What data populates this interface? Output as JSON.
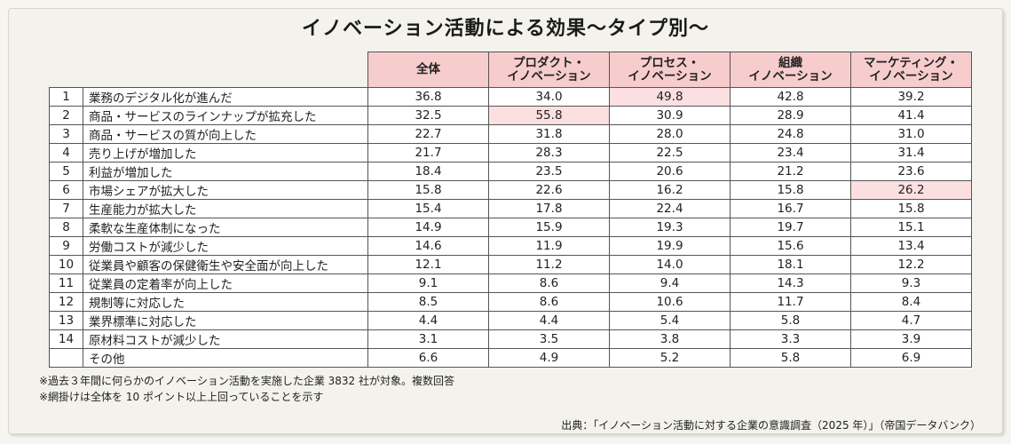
{
  "title": "イノベーション活動による効果～タイプ別～",
  "table": {
    "headers": [
      "全体",
      "プロダクト・\nイノベーション",
      "プロセス・\nイノベーション",
      "組織\nイノベーション",
      "マーケティング・\nイノベーション"
    ],
    "rows": [
      {
        "no": "1",
        "item": "業務のデジタル化が進んだ",
        "values": [
          "36.8",
          "34.0",
          "49.8",
          "42.8",
          "39.2"
        ],
        "highlight": [
          false,
          false,
          true,
          false,
          false
        ]
      },
      {
        "no": "2",
        "item": "商品・サービスのラインナップが拡充した",
        "values": [
          "32.5",
          "55.8",
          "30.9",
          "28.9",
          "41.4"
        ],
        "highlight": [
          false,
          true,
          false,
          false,
          false
        ]
      },
      {
        "no": "3",
        "item": "商品・サービスの質が向上した",
        "values": [
          "22.7",
          "31.8",
          "28.0",
          "24.8",
          "31.0"
        ],
        "highlight": [
          false,
          false,
          false,
          false,
          false
        ]
      },
      {
        "no": "4",
        "item": "売り上げが増加した",
        "values": [
          "21.7",
          "28.3",
          "22.5",
          "23.4",
          "31.4"
        ],
        "highlight": [
          false,
          false,
          false,
          false,
          false
        ]
      },
      {
        "no": "5",
        "item": "利益が増加した",
        "values": [
          "18.4",
          "23.5",
          "20.6",
          "21.2",
          "23.6"
        ],
        "highlight": [
          false,
          false,
          false,
          false,
          false
        ]
      },
      {
        "no": "6",
        "item": "市場シェアが拡大した",
        "values": [
          "15.8",
          "22.6",
          "16.2",
          "15.8",
          "26.2"
        ],
        "highlight": [
          false,
          false,
          false,
          false,
          true
        ]
      },
      {
        "no": "7",
        "item": "生産能力が拡大した",
        "values": [
          "15.4",
          "17.8",
          "22.4",
          "16.7",
          "15.8"
        ],
        "highlight": [
          false,
          false,
          false,
          false,
          false
        ]
      },
      {
        "no": "8",
        "item": "柔軟な生産体制になった",
        "values": [
          "14.9",
          "15.9",
          "19.3",
          "19.7",
          "15.1"
        ],
        "highlight": [
          false,
          false,
          false,
          false,
          false
        ]
      },
      {
        "no": "9",
        "item": "労働コストが減少した",
        "values": [
          "14.6",
          "11.9",
          "19.9",
          "15.6",
          "13.4"
        ],
        "highlight": [
          false,
          false,
          false,
          false,
          false
        ]
      },
      {
        "no": "10",
        "item": "従業員や顧客の保健衛生や安全面が向上した",
        "values": [
          "12.1",
          "11.2",
          "14.0",
          "18.1",
          "12.2"
        ],
        "highlight": [
          false,
          false,
          false,
          false,
          false
        ]
      },
      {
        "no": "11",
        "item": "従業員の定着率が向上した",
        "values": [
          "9.1",
          "8.6",
          "9.4",
          "14.3",
          "9.3"
        ],
        "highlight": [
          false,
          false,
          false,
          false,
          false
        ]
      },
      {
        "no": "12",
        "item": "規制等に対応した",
        "values": [
          "8.5",
          "8.6",
          "10.6",
          "11.7",
          "8.4"
        ],
        "highlight": [
          false,
          false,
          false,
          false,
          false
        ]
      },
      {
        "no": "13",
        "item": "業界標準に対応した",
        "values": [
          "4.4",
          "4.4",
          "5.4",
          "5.8",
          "4.7"
        ],
        "highlight": [
          false,
          false,
          false,
          false,
          false
        ]
      },
      {
        "no": "14",
        "item": "原材料コストが減少した",
        "values": [
          "3.1",
          "3.5",
          "3.8",
          "3.3",
          "3.9"
        ],
        "highlight": [
          false,
          false,
          false,
          false,
          false
        ]
      },
      {
        "no": "",
        "item": "その他",
        "values": [
          "6.6",
          "4.9",
          "5.2",
          "5.8",
          "6.9"
        ],
        "highlight": [
          false,
          false,
          false,
          false,
          false
        ]
      }
    ]
  },
  "notes": [
    "※過去３年間に何らかのイノベーション活動を実施した企業 3832 社が対象。複数回答",
    "※網掛けは全体を 10 ポイント以上上回っていることを示す"
  ],
  "source": "出典：「イノベーション活動に対する企業の意識調査（2025 年）」（帝国データバンク）"
}
